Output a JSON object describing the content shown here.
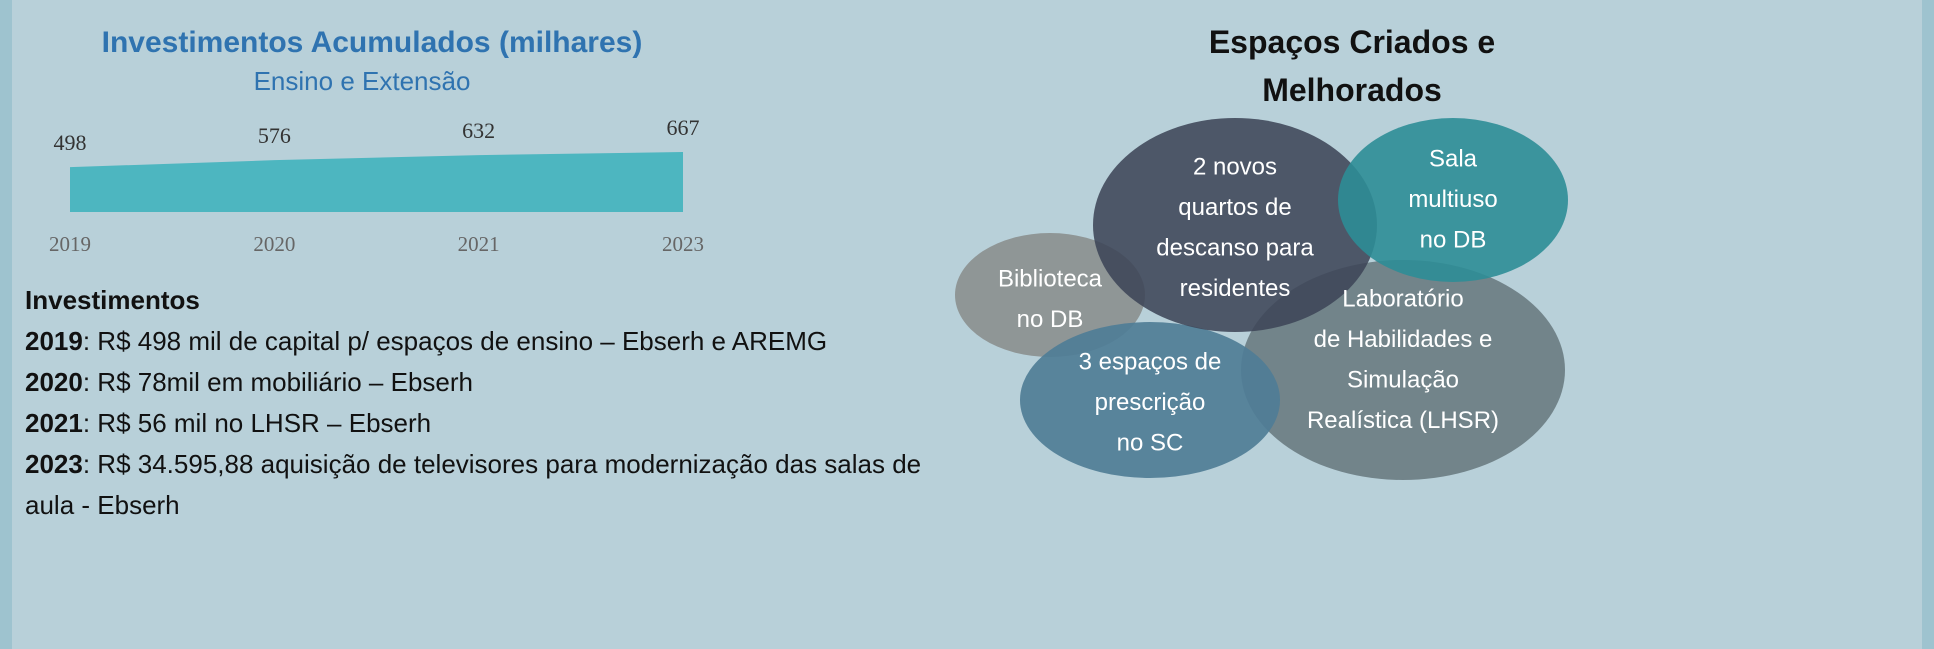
{
  "chart_data": {
    "type": "area",
    "title": "Investimentos Acumulados (milhares)",
    "subtitle": "Ensino e Extensão",
    "categories": [
      "2019",
      "2020",
      "2021",
      "2023"
    ],
    "values": [
      498,
      576,
      632,
      667
    ],
    "color": "#4db6c0",
    "ylim": [
      0,
      1000
    ]
  },
  "investments": {
    "title": "Investimentos",
    "items": [
      {
        "year": "2019",
        "text": ": R$ 498 mil de capital p/ espaços de ensino – Ebserh e AREMG"
      },
      {
        "year": "2020",
        "text": ": R$ 78mil em mobiliário – Ebserh"
      },
      {
        "year": "2021",
        "text": ": R$ 56 mil no LHSR – Ebserh"
      },
      {
        "year": "2023",
        "text": ": R$ 34.595,88 aquisição de televisores para modernização das salas de aula - Ebserh"
      }
    ]
  },
  "spaces": {
    "title": "Espaços Criados e Melhorados",
    "bubbles": [
      {
        "lines": [
          "Biblioteca",
          "no DB"
        ]
      },
      {
        "lines": [
          "Laboratório",
          "de Habilidades e",
          "Simulação",
          "Realística (LHSR)"
        ]
      },
      {
        "lines": [
          "3 espaços de",
          "prescrição",
          "no SC"
        ]
      },
      {
        "lines": [
          "2 novos",
          "quartos de",
          "descanso para",
          "residentes"
        ]
      },
      {
        "lines": [
          "Sala",
          "multiuso",
          "no DB"
        ]
      }
    ]
  }
}
